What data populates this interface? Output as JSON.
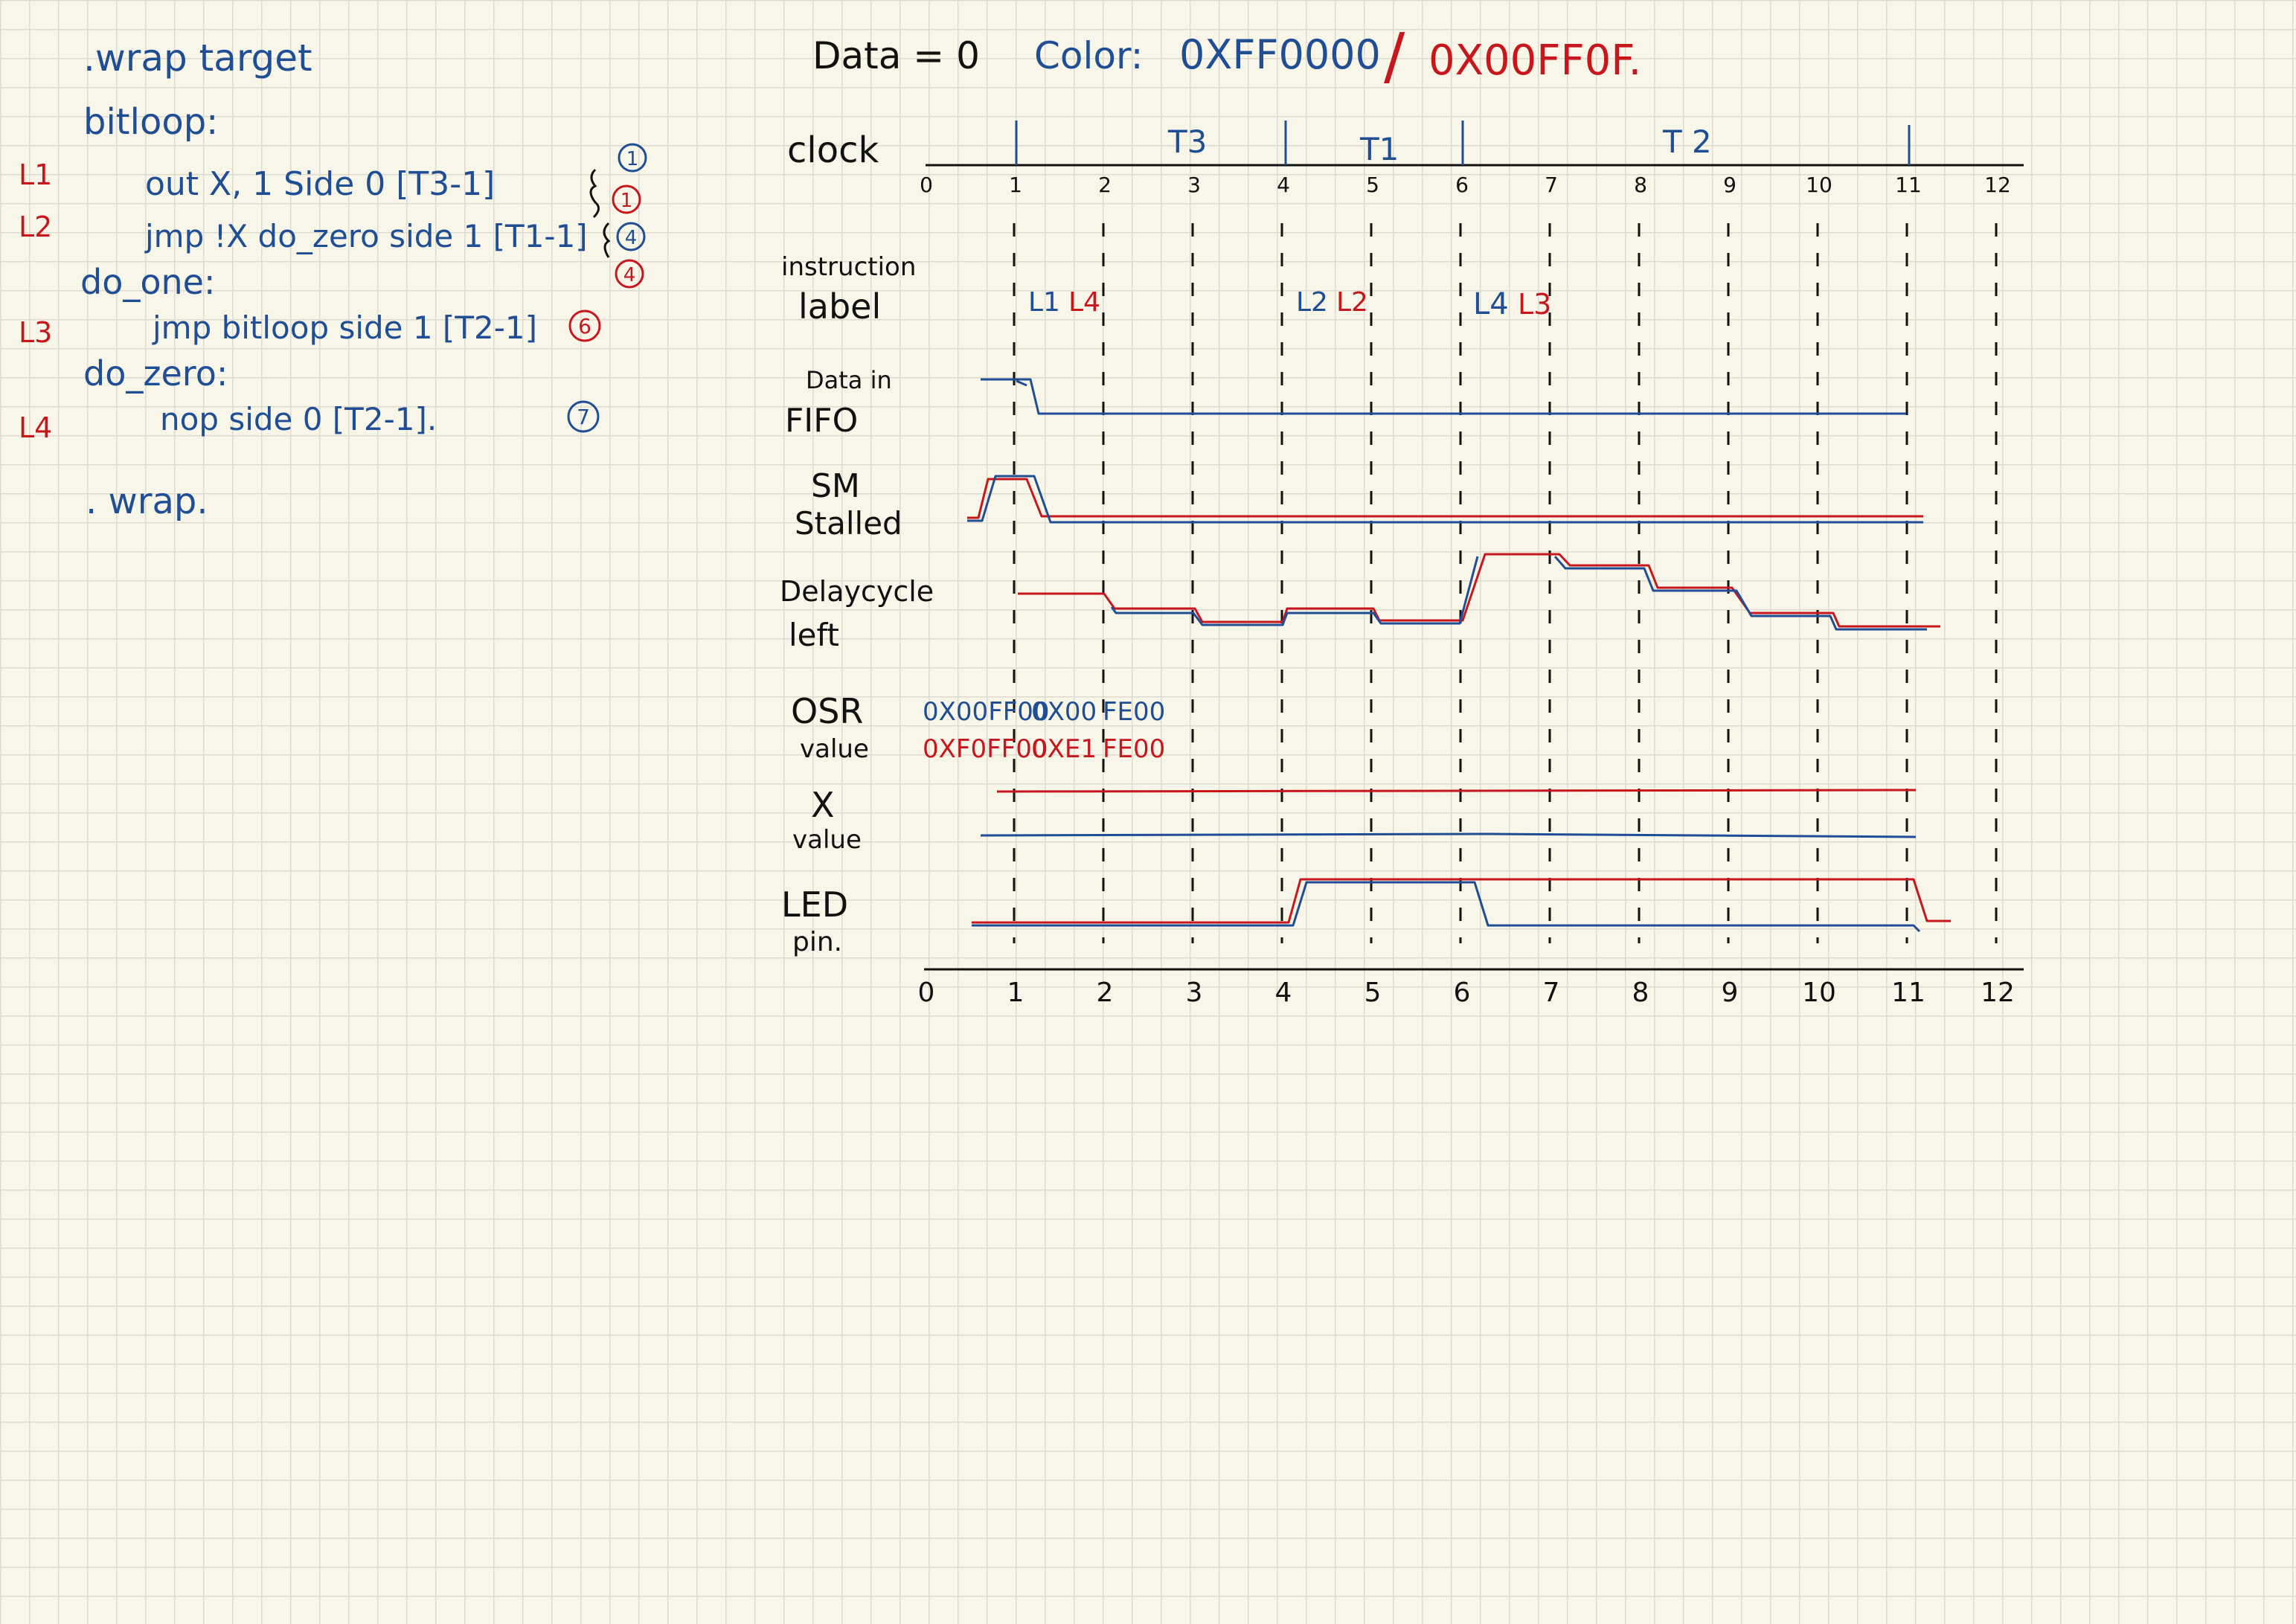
{
  "code": {
    "wrap_target": ".wrap target",
    "bitloop_label": "bitloop:",
    "lines": [
      {
        "tag": "L1",
        "text": "out X, 1  Side 0 [T3-1]",
        "bubble_blue": "1",
        "bubble_red": "1"
      },
      {
        "tag": "L2",
        "text": "jmp !X do_zero side 1  [T1-1]",
        "bubble_blue": "4",
        "bubble_red": "4"
      },
      {
        "tag": "L3",
        "text": "jmp bitloop side 1  [T2-1]",
        "bubble_red": "6"
      },
      {
        "tag": "L4",
        "text": "nop          side 0  [T2-1].",
        "bubble_blue": "7"
      }
    ],
    "do_one_label": "do_one:",
    "do_zero_label": "do_zero:",
    "wrap": ". wrap."
  },
  "header": {
    "data_label": "Data = 0",
    "color_label": "Color:",
    "color_blue": "0XFF0000",
    "slash": "/",
    "color_red": "0X00FF0F."
  },
  "phases": [
    "T3",
    "T1",
    "T 2"
  ],
  "row_labels": [
    [
      "clock"
    ],
    [
      "instruction",
      "label"
    ],
    [
      "Data in",
      "FIFO"
    ],
    [
      "SM",
      "Stalled"
    ],
    [
      "Delaycycle",
      "left"
    ],
    [
      "OSR",
      "value"
    ],
    [
      "X",
      "value"
    ],
    [
      "LED",
      "pin."
    ]
  ],
  "instruction_labels": {
    "group1": [
      "L1",
      "L4"
    ],
    "group2": [
      "L2",
      "L2"
    ],
    "group3": [
      "L4",
      "L3"
    ]
  },
  "osr": {
    "blue": [
      "0X00FF00",
      "0X00",
      "FE00"
    ],
    "red": [
      "0XF0FF00",
      "0XE1",
      "FE00"
    ]
  },
  "ticks": [
    "0",
    "1",
    "2",
    "3",
    "4",
    "5",
    "6",
    "7",
    "8",
    "9",
    "10",
    "11",
    "12"
  ],
  "colors": {
    "blue": "#1f4e94",
    "red": "#c8161d",
    "ink": "#111111",
    "paper": "#f8f5e9"
  }
}
